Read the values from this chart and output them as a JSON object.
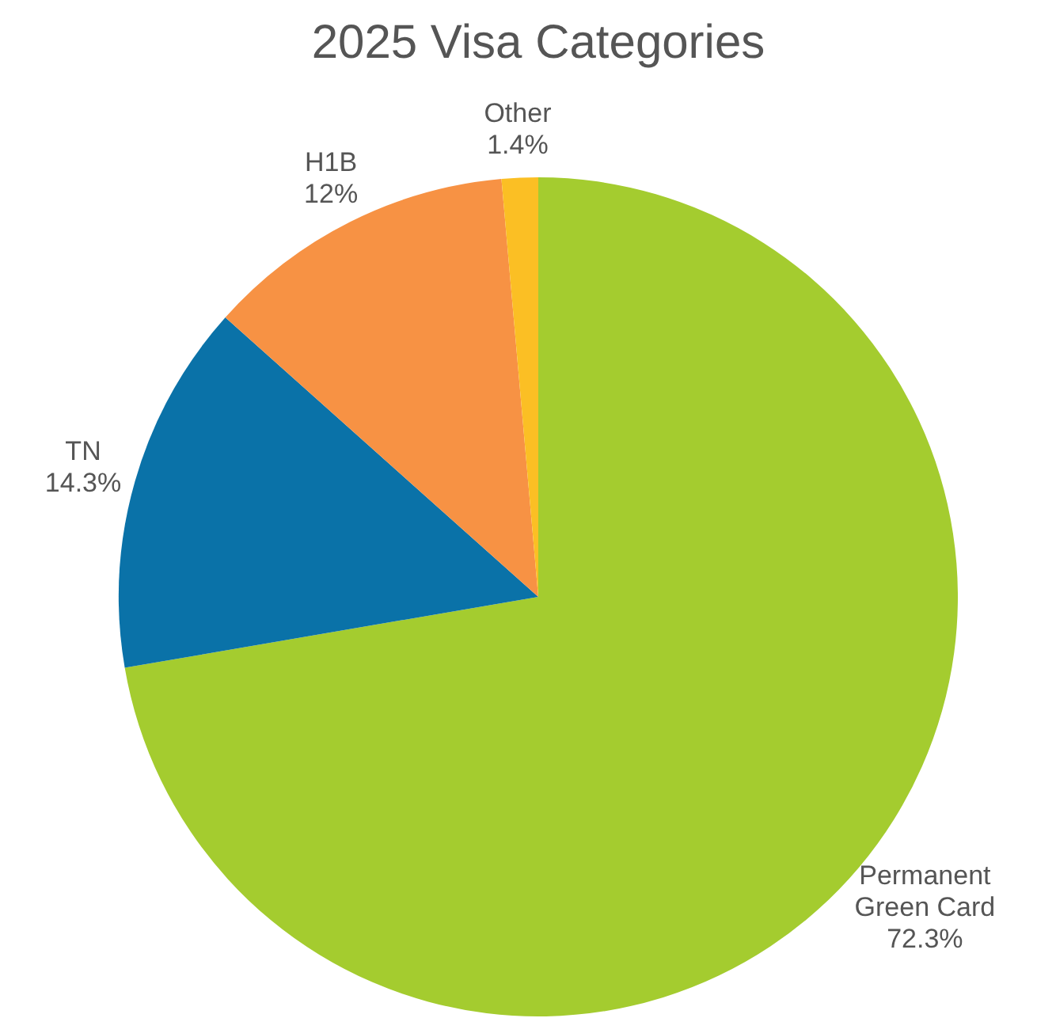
{
  "chart_data": {
    "type": "pie",
    "title": "2025 Visa Categories",
    "categories": [
      "Permanent Green Card",
      "TN",
      "H1B",
      "Other"
    ],
    "values": [
      72.3,
      14.3,
      12,
      1.4
    ],
    "value_labels": [
      "72.3%",
      "14.3%",
      "12%",
      "1.4%"
    ],
    "colors": [
      "#a4cc2f",
      "#0a72a8",
      "#f79244",
      "#fbbf24"
    ],
    "legend": false
  }
}
